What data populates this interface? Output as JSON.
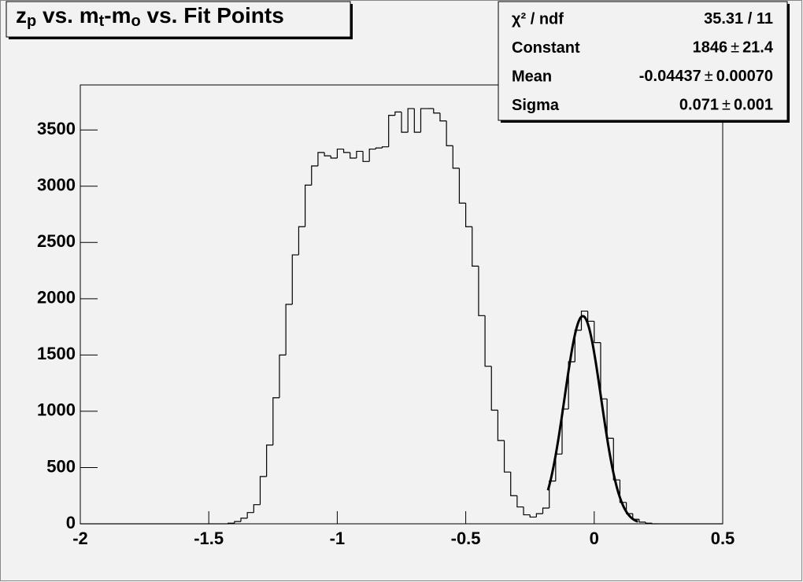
{
  "chart_data": {
    "type": "histogram",
    "title": [
      {
        "text": "z"
      },
      {
        "sub": "p"
      },
      {
        "text": " vs. m"
      },
      {
        "sub": "t"
      },
      {
        "text": "-m"
      },
      {
        "sub": "o"
      },
      {
        "text": " vs. Fit Points"
      }
    ],
    "bins": [
      -2,
      -1.975,
      -1.95,
      -1.925,
      -1.9,
      -1.875,
      -1.85,
      -1.825,
      -1.8,
      -1.775,
      -1.75,
      -1.725,
      -1.7,
      -1.675,
      -1.65,
      -1.625,
      -1.6,
      -1.575,
      -1.55,
      -1.525,
      -1.5,
      -1.475,
      -1.45,
      -1.425,
      -1.4,
      -1.375,
      -1.35,
      -1.325,
      -1.3,
      -1.275,
      -1.25,
      -1.225,
      -1.2,
      -1.175,
      -1.15,
      -1.125,
      -1.1,
      -1.075,
      -1.05,
      -1.025,
      -1,
      -0.975,
      -0.95,
      -0.925,
      -0.9,
      -0.875,
      -0.85,
      -0.825,
      -0.8,
      -0.775,
      -0.75,
      -0.725,
      -0.7,
      -0.675,
      -0.65,
      -0.625,
      -0.6,
      -0.575,
      -0.55,
      -0.525,
      -0.5,
      -0.475,
      -0.45,
      -0.425,
      -0.4,
      -0.375,
      -0.35,
      -0.325,
      -0.3,
      -0.275,
      -0.25,
      -0.225,
      -0.2,
      -0.175,
      -0.15,
      -0.125,
      -0.1,
      -0.075,
      -0.05,
      -0.025,
      0,
      0.025,
      0.05,
      0.075,
      0.1,
      0.125,
      0.15,
      0.175,
      0.2,
      0.225,
      0.25,
      0.275,
      0.3,
      0.325,
      0.35,
      0.375,
      0.4,
      0.425,
      0.45,
      0.475,
      0.5
    ],
    "values": [
      0,
      0,
      0,
      0,
      0,
      0,
      0,
      0,
      0,
      0,
      0,
      0,
      0,
      0,
      0,
      0,
      0,
      0,
      0,
      0,
      0,
      0,
      0,
      5,
      20,
      50,
      100,
      170,
      420,
      700,
      1120,
      1500,
      1950,
      2390,
      2640,
      3010,
      3180,
      3300,
      3270,
      3250,
      3330,
      3300,
      3250,
      3310,
      3220,
      3330,
      3340,
      3350,
      3630,
      3660,
      3480,
      3690,
      3480,
      3690,
      3690,
      3650,
      3580,
      3360,
      3160,
      2850,
      2640,
      2290,
      1850,
      1400,
      1010,
      740,
      460,
      250,
      150,
      80,
      60,
      90,
      140,
      380,
      620,
      1020,
      1440,
      1720,
      1890,
      1800,
      1610,
      1110,
      760,
      390,
      190,
      90,
      40,
      15,
      5,
      0,
      0,
      0,
      0,
      0,
      0,
      0,
      0,
      0,
      0,
      0
    ],
    "color": "#000000",
    "xlim": [
      -2,
      0.5
    ],
    "xticks": [
      -2,
      -1.5,
      -1,
      -0.5,
      0,
      0.5
    ],
    "ylim": [
      0,
      3900
    ],
    "yticks": [
      0,
      500,
      1000,
      1500,
      2000,
      2500,
      3000,
      3500
    ],
    "fit_range": [
      -0.18,
      0.17
    ],
    "pm": "±",
    "stats": [
      {
        "name": "χ² / ndf",
        "value": "35.31 / 11"
      },
      {
        "name": "Constant",
        "value": 1846,
        "error": 21.4
      },
      {
        "name": "Mean",
        "value": -0.04437,
        "error": {
          "value": 0.0007,
          "label": "0.00070"
        }
      },
      {
        "name": "Sigma",
        "value": 0.071,
        "error": 0.001
      }
    ]
  }
}
